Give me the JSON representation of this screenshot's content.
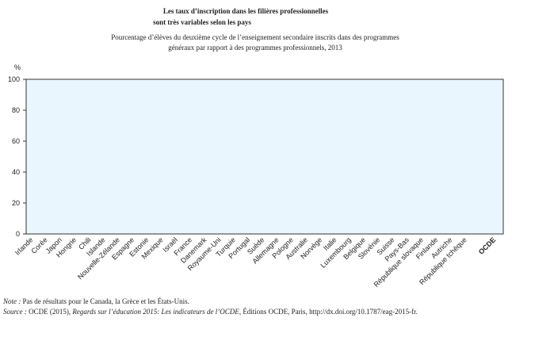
{
  "chart_data": {
    "type": "bar",
    "title": [
      "Les taux d’inscription dans les filières professionnelles",
      "sont très variables selon les pays"
    ],
    "subtitle": [
      "Pourcentage d’élèves du deuxième cycle de l’enseignement secondaire inscrits dans des programmes",
      "généraux par rapport à des programmes professionnels, 2013"
    ],
    "y_label": "%",
    "categories": [
      "Irlande",
      "Corée",
      "Japon",
      "Hongrie",
      "Chili",
      "Islande",
      "Nouvelle-Zélande",
      "Espagne",
      "Estonie",
      "Mexique",
      "Israël",
      "France",
      "Danemark",
      "Royaume-Uni",
      "Turquie",
      "Portugal",
      "Suède",
      "Allemagne",
      "Pologne",
      "Australie",
      "Norvège",
      "Italie",
      "Luxembourg",
      "Belgique",
      "Slovénie",
      "Suisse",
      "Pays-Bas",
      "République slovaque",
      "Finlande",
      "Autriche",
      "République tchèque",
      null,
      "OCDE"
    ],
    "values": [
      null,
      null,
      null,
      null,
      null,
      null,
      null,
      null,
      null,
      null,
      null,
      null,
      null,
      null,
      null,
      null,
      null,
      null,
      null,
      null,
      null,
      null,
      null,
      null,
      null,
      null,
      null,
      null,
      null,
      null,
      null,
      null,
      null
    ],
    "color": "#1f6fb0",
    "ylim": [
      0,
      100
    ],
    "yticks": [
      0,
      20,
      40,
      60,
      80,
      100
    ],
    "grid": false
  },
  "notes": {
    "note_label": "Note :",
    "note_text": "Pas de résultats pour le Canada, la Grèce et les États-Unis.",
    "source_label": "Source :",
    "source_text": "OCDE (2015),",
    "source_italic": "Regards sur l’éducation 2015: Les indicateurs de l’OCDE",
    "source_rest": ", Éditions OCDE, Paris, http://dx.doi.org/10.1787/eag-2015-fr."
  }
}
